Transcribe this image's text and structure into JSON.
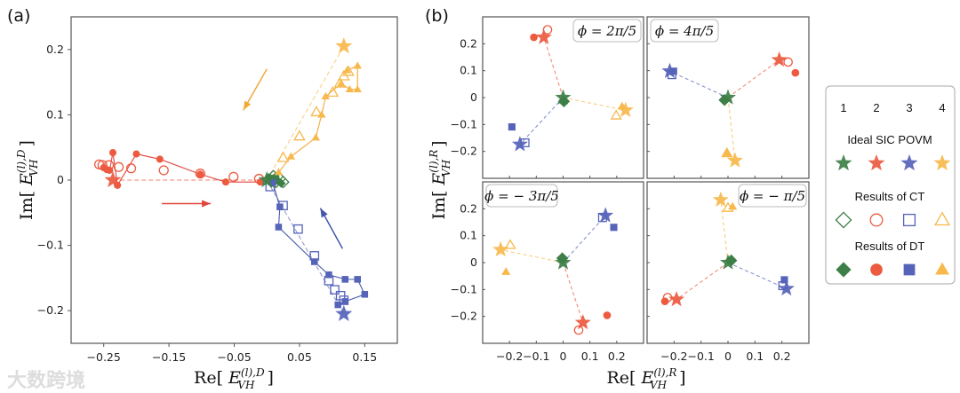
{
  "colors": {
    "1": "#3d7f47",
    "2": "#ec5a3f",
    "3": "#5563b8",
    "4": "#f7b84c",
    "line_red": "#e2473e",
    "line_orange": "#f2a93a",
    "line_blue": "#4457a8",
    "axis": "#555555"
  },
  "watermark": "大数跨境",
  "legend": {
    "numbers": [
      "1",
      "2",
      "3",
      "4"
    ],
    "rows": [
      {
        "title": "Ideal SIC POVM",
        "marker": "star",
        "filled": true
      },
      {
        "title": "Results of CT",
        "markers": [
          "diamond",
          "circle",
          "square",
          "triangle"
        ],
        "filled": false
      },
      {
        "title": "Results of DT",
        "markers": [
          "diamond",
          "circle",
          "square",
          "triangle"
        ],
        "filled": true
      }
    ]
  },
  "chart_data": [
    {
      "panel": "(a)",
      "type": "scatter",
      "xlabel": {
        "pre": "Re",
        "base": "E",
        "sub": "VH",
        "sup": "(l),D"
      },
      "ylabel": {
        "pre": "Im",
        "base": "E",
        "sub": "VH",
        "sup": "(l),D"
      },
      "xlim": [
        -0.3,
        0.2
      ],
      "ylim": [
        -0.25,
        0.25
      ],
      "xticks": [
        -0.25,
        -0.15,
        -0.05,
        0.05,
        0.15
      ],
      "xtick_labels": [
        "−0.25",
        "−0.15",
        "−0.05",
        "0.05",
        "0.15"
      ],
      "yticks": [
        0.2,
        0.1,
        0,
        -0.1,
        -0.2
      ],
      "ytick_labels": [
        "0.2",
        "0.1",
        "0",
        "−0.1",
        "−0.2"
      ],
      "ideal": [
        {
          "element": "1",
          "x": 0.0,
          "y": 0.0
        },
        {
          "element": "2",
          "x": -0.236,
          "y": 0.0
        },
        {
          "element": "3",
          "x": 0.118,
          "y": -0.205
        },
        {
          "element": "4",
          "x": 0.118,
          "y": 0.205
        }
      ],
      "ct": [
        {
          "element": "1",
          "points": [
            [
              0.003,
              0.001
            ],
            [
              0.01,
              0.006
            ],
            [
              0.014,
              -0.003
            ],
            [
              0.02,
              0.002
            ],
            [
              0.025,
              -0.003
            ],
            [
              0.007,
              -0.002
            ]
          ]
        },
        {
          "element": "2",
          "points": [
            [
              -0.257,
              0.024
            ],
            [
              -0.252,
              0.023
            ],
            [
              -0.242,
              0.023
            ],
            [
              -0.227,
              0.02
            ],
            [
              -0.208,
              0.018
            ],
            [
              -0.158,
              0.015
            ],
            [
              -0.102,
              0.01
            ],
            [
              -0.051,
              0.005
            ],
            [
              -0.012,
              0.002
            ]
          ]
        },
        {
          "element": "3",
          "points": [
            [
              0.005,
              -0.01
            ],
            [
              0.025,
              -0.039
            ],
            [
              0.048,
              -0.075
            ],
            [
              0.073,
              -0.116
            ],
            [
              0.095,
              -0.154
            ],
            [
              0.104,
              -0.168
            ],
            [
              0.113,
              -0.177
            ],
            [
              0.118,
              -0.184
            ]
          ]
        },
        {
          "element": "4",
          "points": [
            [
              0.025,
              0.034
            ],
            [
              0.05,
              0.067
            ],
            [
              0.076,
              0.104
            ],
            [
              0.101,
              0.134
            ],
            [
              0.112,
              0.148
            ],
            [
              0.118,
              0.159
            ],
            [
              0.125,
              0.166
            ]
          ]
        }
      ],
      "dt": [
        {
          "element": "1",
          "points": [
            [
              0.008,
              0.002
            ],
            [
              0.012,
              0.004
            ],
            [
              0.018,
              -0.002
            ],
            [
              0.022,
              -0.005
            ],
            [
              0.015,
              0.0
            ],
            [
              0.005,
              0.003
            ],
            [
              0.01,
              -0.004
            ]
          ]
        },
        {
          "element": "2",
          "points": [
            [
              -0.25,
              0.019
            ],
            [
              -0.245,
              0.016
            ],
            [
              -0.241,
              0.015
            ],
            [
              -0.236,
              0.042
            ],
            [
              -0.229,
              -0.008
            ],
            [
              -0.2,
              0.04
            ],
            [
              -0.164,
              0.032
            ],
            [
              -0.102,
              0.009
            ],
            [
              -0.063,
              -0.003
            ],
            [
              -0.01,
              -0.003
            ]
          ]
        },
        {
          "element": "3",
          "points": [
            [
              0.109,
              -0.191
            ],
            [
              0.12,
              -0.186
            ],
            [
              0.15,
              -0.175
            ],
            [
              0.139,
              -0.152
            ],
            [
              0.12,
              -0.152
            ],
            [
              0.095,
              -0.145
            ],
            [
              0.073,
              -0.125
            ],
            [
              0.018,
              -0.072
            ],
            [
              0.02,
              -0.041
            ],
            [
              0.009,
              -0.004
            ]
          ]
        },
        {
          "element": "4",
          "points": [
            [
              0.123,
              0.168
            ],
            [
              0.139,
              0.175
            ],
            [
              0.139,
              0.139
            ],
            [
              0.127,
              0.139
            ],
            [
              0.114,
              0.148
            ],
            [
              0.09,
              0.128
            ],
            [
              0.084,
              0.1
            ],
            [
              0.075,
              0.065
            ],
            [
              0.037,
              0.036
            ],
            [
              0.018,
              0.012
            ]
          ]
        }
      ],
      "arrows": [
        {
          "color": "4",
          "from": [
            0.0,
            0.17
          ],
          "to": [
            -0.036,
            0.107
          ]
        },
        {
          "color": "2",
          "from": [
            -0.161,
            -0.036
          ],
          "to": [
            -0.086,
            -0.036
          ]
        },
        {
          "color": "3",
          "from": [
            0.116,
            -0.105
          ],
          "to": [
            0.082,
            -0.043
          ]
        }
      ]
    },
    {
      "panel": "(b)",
      "type": "scatter",
      "xlabel": {
        "pre": "Re",
        "base": "E",
        "sub": "VH",
        "sup": "(l),R"
      },
      "ylabel": {
        "pre": "Im",
        "base": "E",
        "sub": "VH",
        "sup": "(l),R"
      },
      "xlim": [
        -0.3,
        0.3
      ],
      "ylim": [
        -0.3,
        0.3
      ],
      "xticks": [
        -0.2,
        -0.1,
        0,
        0.1,
        0.2
      ],
      "xtick_labels": [
        "−0.2",
        "−0.1",
        "0",
        "0.1",
        "0.2"
      ],
      "yticks": [
        0.2,
        0.1,
        0,
        -0.1,
        -0.2
      ],
      "ytick_labels": [
        "0.2",
        "0.1",
        "0",
        "−0.1",
        "−0.2"
      ],
      "subplots": [
        {
          "label": "ϕ = 2π/5",
          "label_pos": "right",
          "ideal": [
            [
              0,
              0
            ],
            [
              -0.072,
              0.224
            ],
            [
              -0.161,
              -0.174
            ],
            [
              0.233,
              -0.047
            ]
          ],
          "ct": [
            [
              0.003,
              -0.014
            ],
            [
              -0.058,
              0.252
            ],
            [
              -0.142,
              -0.168
            ],
            [
              0.198,
              -0.067
            ]
          ],
          "dt": [
            [
              0.003,
              -0.014
            ],
            [
              -0.109,
              0.224
            ],
            [
              -0.191,
              -0.109
            ],
            [
              0.22,
              -0.033
            ]
          ]
        },
        {
          "label": "ϕ = 4π/5",
          "label_pos": "left",
          "ideal": [
            [
              0,
              0
            ],
            [
              0.19,
              0.14
            ],
            [
              -0.216,
              0.098
            ],
            [
              0.026,
              -0.234
            ]
          ],
          "ct": [
            [
              -0.013,
              -0.009
            ],
            [
              0.223,
              0.132
            ],
            [
              -0.208,
              0.085
            ],
            [
              -0.004,
              -0.207
            ]
          ],
          "dt": [
            [
              -0.013,
              -0.009
            ],
            [
              0.25,
              0.092
            ],
            [
              -0.202,
              0.098
            ],
            [
              -0.004,
              -0.207
            ]
          ]
        },
        {
          "label": "ϕ = − 3π/5",
          "label_pos": "left",
          "ideal": [
            [
              0,
              0
            ],
            [
              0.074,
              -0.223
            ],
            [
              0.158,
              0.175
            ],
            [
              -0.233,
              0.048
            ]
          ],
          "ct": [
            [
              -0.003,
              0.016
            ],
            [
              0.058,
              -0.251
            ],
            [
              0.147,
              0.167
            ],
            [
              -0.197,
              0.065
            ]
          ],
          "dt": [
            [
              -0.003,
              0.016
            ],
            [
              0.164,
              -0.196
            ],
            [
              0.189,
              0.131
            ],
            [
              -0.213,
              -0.034
            ]
          ]
        },
        {
          "label": "ϕ = − π/5",
          "label_pos": "right",
          "ideal": [
            [
              0,
              0
            ],
            [
              -0.191,
              -0.137
            ],
            [
              0.217,
              -0.097
            ],
            [
              -0.027,
              0.233
            ]
          ],
          "ct": [
            [
              0.012,
              0.008
            ],
            [
              -0.224,
              -0.13
            ],
            [
              0.203,
              -0.086
            ],
            [
              0.0,
              0.203
            ]
          ],
          "dt": [
            [
              0.012,
              0.008
            ],
            [
              -0.234,
              -0.144
            ],
            [
              0.209,
              -0.064
            ],
            [
              0.017,
              0.208
            ]
          ]
        }
      ]
    }
  ]
}
